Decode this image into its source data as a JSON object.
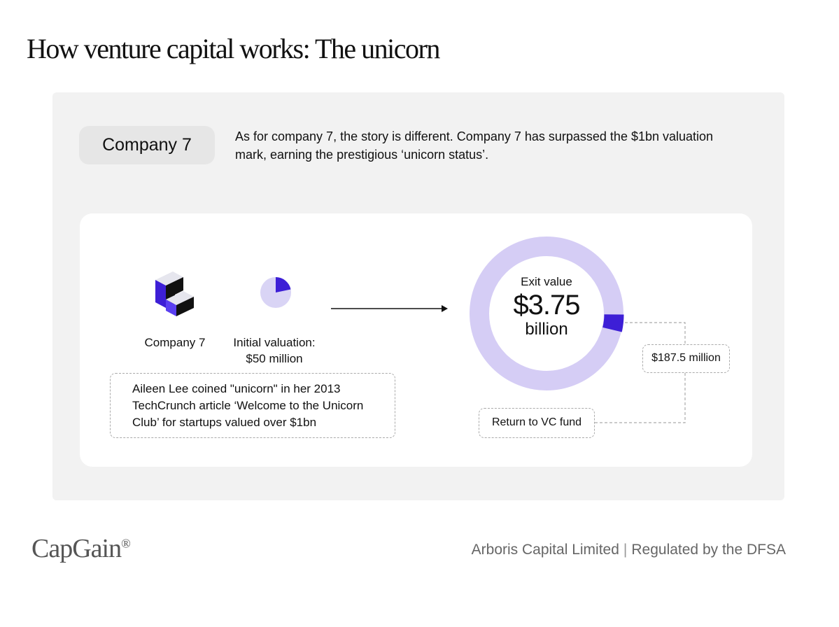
{
  "header": {
    "title": "How venture capital works: The unicorn"
  },
  "intro": {
    "badge": "Company 7",
    "description": "As for company 7, the story is different. Company 7 has surpassed the $1bn valuation mark, earning the prestigious  ‘unicorn status’."
  },
  "diagram": {
    "company": "Company 7",
    "initial_valuation": "Initial valuation:",
    "initial_amount": "$50 million",
    "exit_label": "Exit value",
    "exit_amount": "$3.75",
    "exit_unit": "billion",
    "return_amount": "$187.5 million",
    "return_label": "Return to VC fund",
    "note": "Aileen Lee coined \"unicorn\" in her 2013 TechCrunch article ‘Welcome to the Unicorn Club’ for startups valued over $1bn"
  },
  "footer": {
    "brand": "CapGain",
    "brand_mark": "®",
    "company": "Arboris Capital Limited",
    "regulation": "Regulated by the DFSA"
  }
}
